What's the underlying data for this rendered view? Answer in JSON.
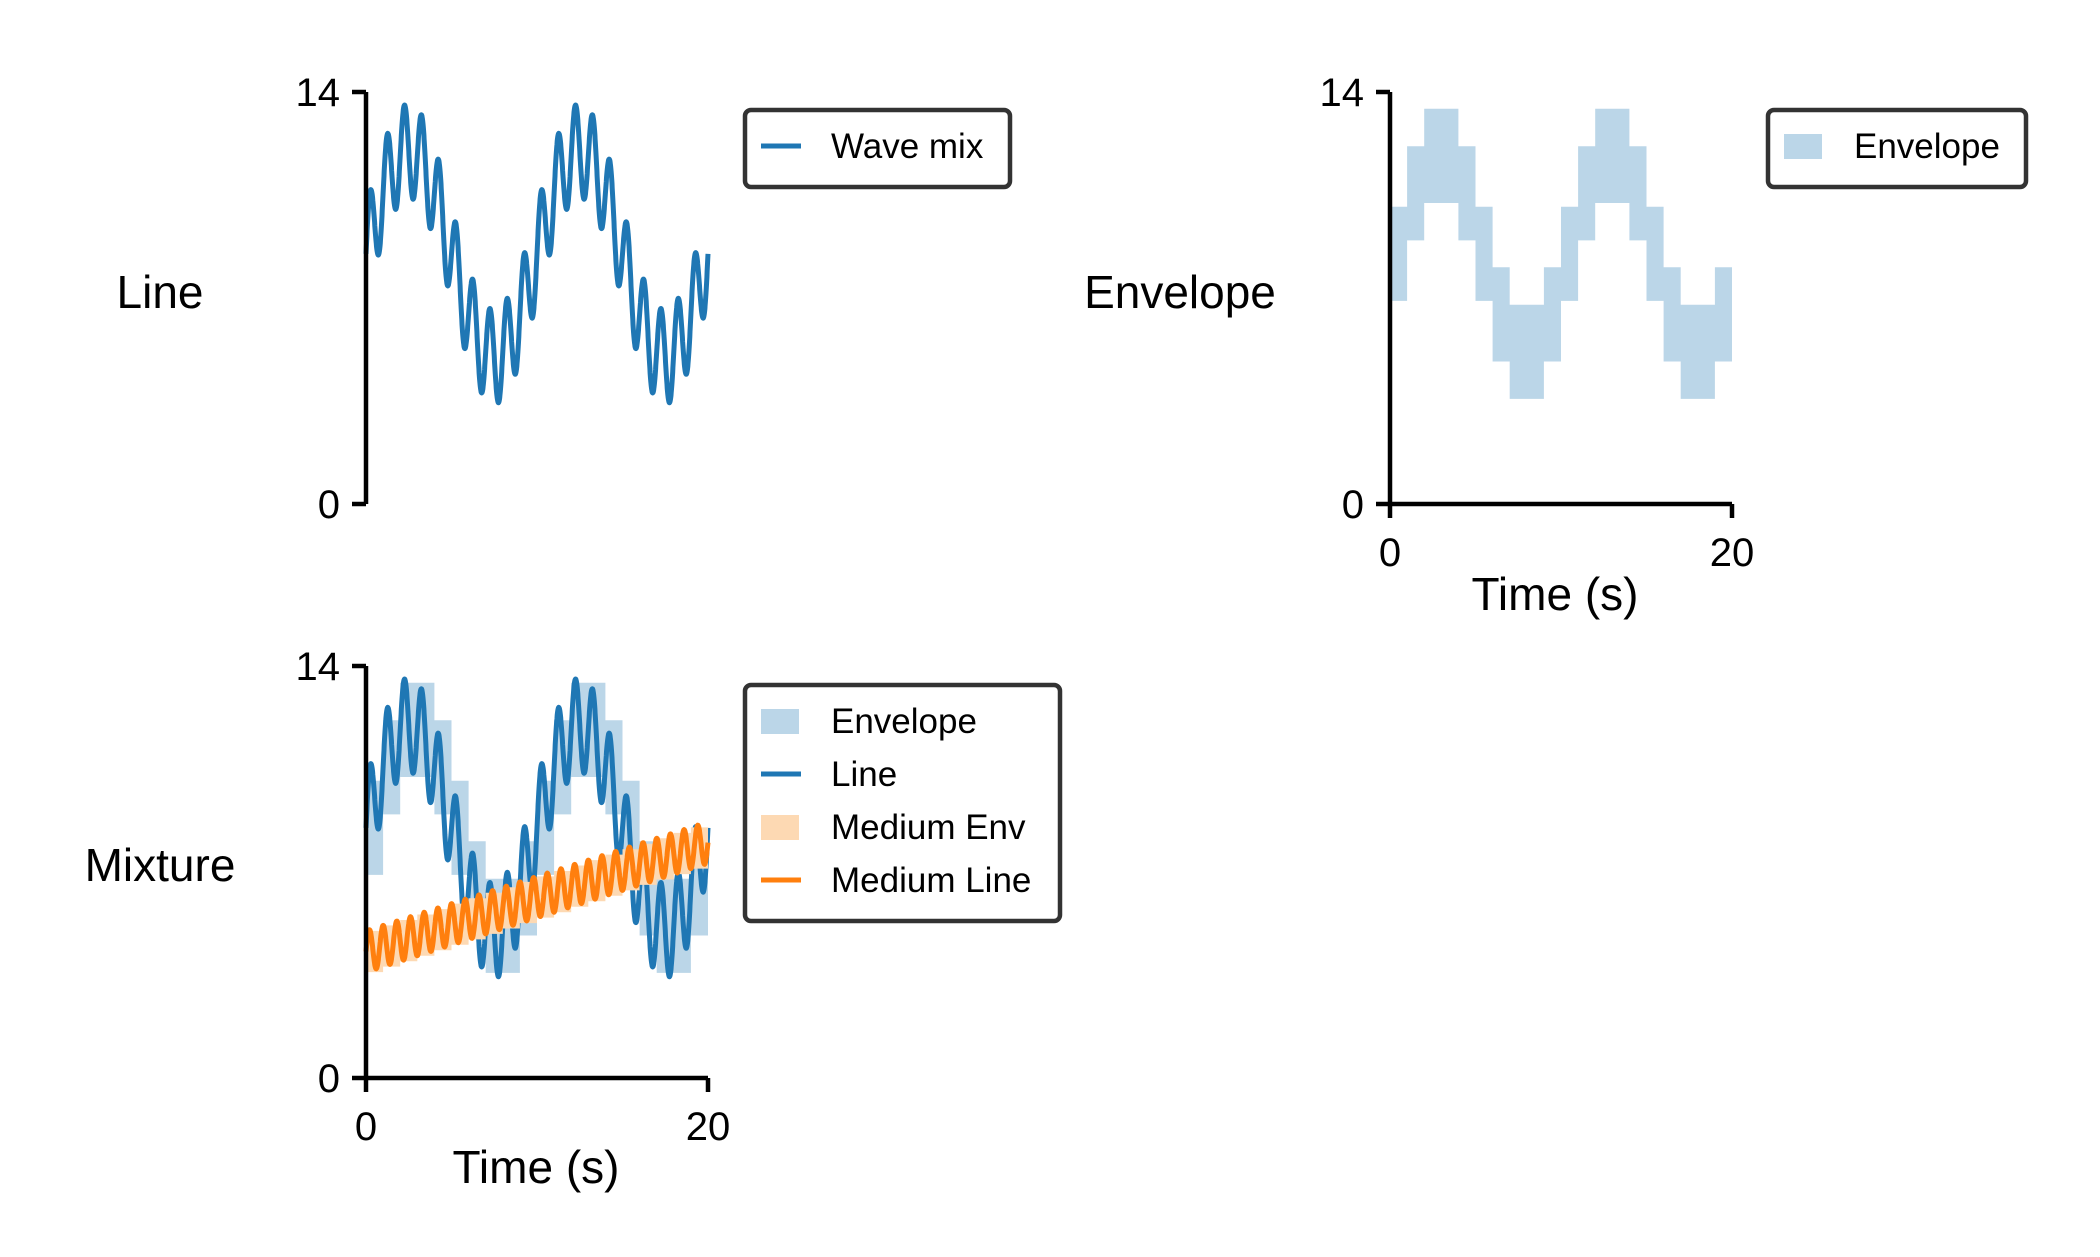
{
  "chart_data": [
    {
      "type": "line",
      "row_label": "Line",
      "x_range": [
        0,
        20.0
      ],
      "xlim": [
        0,
        20
      ],
      "ylim": [
        0,
        14
      ],
      "yticks": [
        0,
        14
      ],
      "xticks": [],
      "xlabel": "",
      "legend": {
        "position": "upper-right-outside"
      },
      "series": [
        {
          "kind": "line",
          "name": "Wave mix",
          "color": "#1f77b4",
          "baseline": 8.5,
          "components": [
            {
              "amp": 3.5,
              "period": 10.0,
              "phase": 0
            },
            {
              "amp": 1.6,
              "period": 1.0,
              "phase": 0
            }
          ]
        }
      ]
    },
    {
      "type": "area",
      "row_label": "Envelope",
      "x_range": [
        0,
        20.0
      ],
      "xlim": [
        0,
        20
      ],
      "ylim": [
        0,
        14
      ],
      "yticks": [
        0,
        14
      ],
      "xticks": [
        0,
        20
      ],
      "xlabel": "Time (s)",
      "legend": {
        "position": "upper-right-outside"
      },
      "series": [
        {
          "kind": "band",
          "name": "Envelope",
          "color": "#bbd6e8",
          "step": 1.0,
          "baseline": 8.5,
          "amp": 3.5,
          "period": 10.0,
          "half_width": 1.6
        }
      ]
    },
    {
      "type": "area",
      "row_label": "Mixture",
      "x_range": [
        0,
        20.0
      ],
      "xlim": [
        0,
        20
      ],
      "ylim": [
        0,
        14
      ],
      "yticks": [
        0,
        14
      ],
      "xticks": [
        0,
        20
      ],
      "xlabel": "Time (s)",
      "legend": {
        "position": "upper-right-outside"
      },
      "series": [
        {
          "kind": "band",
          "name": "Envelope",
          "color": "#bbd6e8",
          "step": 1.0,
          "baseline": 8.5,
          "amp": 3.5,
          "period": 10.0,
          "half_width": 1.6
        },
        {
          "kind": "line",
          "name": "Line",
          "color": "#1f77b4",
          "baseline": 8.5,
          "components": [
            {
              "amp": 3.5,
              "period": 10.0,
              "phase": 0
            },
            {
              "amp": 1.6,
              "period": 1.0,
              "phase": 0
            }
          ]
        },
        {
          "kind": "band",
          "name": "Medium Env",
          "color": "#fdd9b3",
          "step": 1.0,
          "start": 4.3,
          "end": 8.0,
          "half_width": 0.7
        },
        {
          "kind": "line",
          "name": "Medium Line",
          "color": "#ff7f0e",
          "start": 4.3,
          "end": 8.0,
          "components": [
            {
              "amp": 0.7,
              "period": 0.8,
              "phase": 0
            }
          ]
        }
      ]
    }
  ]
}
